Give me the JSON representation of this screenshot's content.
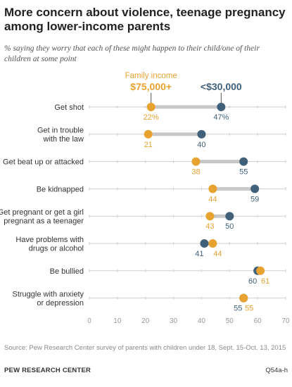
{
  "title": "More concern about violence, teenage pregnancy among lower-income parents",
  "subtitle": "% saying they worry that each of these might happen to their child/one of their children at some point",
  "source": "Source: Pew Research Center survey of parents with children under 18, Sept. 15-Oct. 13, 2015",
  "footer": {
    "org": "PEW RESEARCH CENTER",
    "code": "Q54a-h"
  },
  "colors": {
    "high_income": "#e8a230",
    "low_income": "#41607a",
    "connector": "#c8c8c8",
    "axis_line": "#cfcfcf",
    "label_text": "#333333",
    "tick_text": "#999999"
  },
  "legend": {
    "high_income_header": "Family income",
    "high_income_label": "$75,000+",
    "low_income_label": "<$30,000"
  },
  "chart_data": {
    "type": "dot",
    "xlim": [
      0,
      70
    ],
    "x_ticks": [
      0,
      10,
      20,
      30,
      40,
      50,
      60,
      70
    ],
    "categories": [
      "Get shot",
      "Get in trouble with the law",
      "Get beat up or attacked",
      "Be kidnapped",
      "Get pregnant or get a girl pregnant as a teenager",
      "Have problems with drugs or alcohol",
      "Be bullied",
      "Struggle with anxiety or depression"
    ],
    "category_lines": [
      [
        "Get shot"
      ],
      [
        "Get in trouble",
        "with the law"
      ],
      [
        "Get beat up or attacked"
      ],
      [
        "Be kidnapped"
      ],
      [
        "Get pregnant or get a girl",
        "pregnant as a teenager"
      ],
      [
        "Have problems with",
        "drugs or alcohol"
      ],
      [
        "Be bullied"
      ],
      [
        "Struggle with anxiety",
        "or depression"
      ]
    ],
    "series": [
      {
        "name": "$75,000+",
        "values": [
          22,
          21,
          38,
          44,
          43,
          44,
          61,
          55
        ],
        "labels": [
          "22%",
          "21",
          "38",
          "44",
          "43",
          "44",
          "61",
          "55"
        ]
      },
      {
        "name": "<$30,000",
        "values": [
          47,
          40,
          55,
          59,
          50,
          41,
          60,
          55
        ],
        "labels": [
          "47%",
          "40",
          "55",
          "59",
          "50",
          "41",
          "60",
          "55"
        ]
      }
    ]
  }
}
